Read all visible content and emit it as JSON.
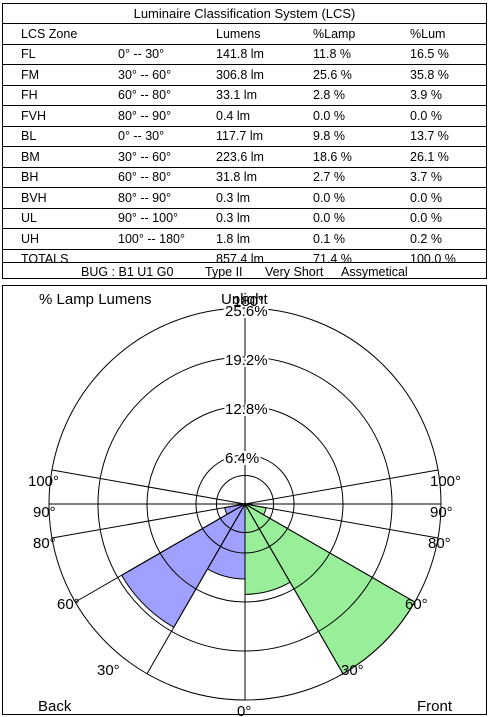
{
  "table": {
    "title": "Luminaire Classification System (LCS)",
    "columns": [
      "LCS Zone",
      "",
      "Lumens",
      "%Lamp",
      "%Lum"
    ],
    "rows": [
      {
        "zone": "FL",
        "range": "0° -- 30°",
        "lumens": "141.8 lm",
        "lamp": "11.8 %",
        "lum": "16.5 %"
      },
      {
        "zone": "FM",
        "range": "30° -- 60°",
        "lumens": "306.8 lm",
        "lamp": "25.6 %",
        "lum": "35.8 %"
      },
      {
        "zone": "FH",
        "range": "60° -- 80°",
        "lumens": "33.1 lm",
        "lamp": "2.8 %",
        "lum": "3.9 %"
      },
      {
        "zone": "FVH",
        "range": "80° -- 90°",
        "lumens": "0.4 lm",
        "lamp": "0.0 %",
        "lum": "0.0 %"
      },
      {
        "zone": "BL",
        "range": "0° -- 30°",
        "lumens": "117.7 lm",
        "lamp": "9.8 %",
        "lum": "13.7 %"
      },
      {
        "zone": "BM",
        "range": "30° -- 60°",
        "lumens": "223.6 lm",
        "lamp": "18.6 %",
        "lum": "26.1 %"
      },
      {
        "zone": "BH",
        "range": "60° -- 80°",
        "lumens": "31.8 lm",
        "lamp": "2.7 %",
        "lum": "3.7 %"
      },
      {
        "zone": "BVH",
        "range": "80° -- 90°",
        "lumens": "0.3 lm",
        "lamp": "0.0 %",
        "lum": "0.0 %"
      },
      {
        "zone": "UL",
        "range": "90° -- 100°",
        "lumens": "0.3 lm",
        "lamp": "0.0 %",
        "lum": "0.0 %"
      },
      {
        "zone": "UH",
        "range": "100° -- 180°",
        "lumens": "1.8 lm",
        "lamp": "0.1 %",
        "lum": "0.2 %"
      },
      {
        "zone": "TOTALS",
        "range": "",
        "lumens": "857.4 lm",
        "lamp": "71.4 %",
        "lum": "100.0 %"
      }
    ],
    "bug_rating": "BUG : B1 U1 G0",
    "type": "Type II",
    "cutoff": "Very Short",
    "symmetry": "Assymetical"
  },
  "chart_data": {
    "type": "polar",
    "title": "% Lamp Lumens",
    "top_label": "Uplight",
    "bottom_left_label": "Back",
    "bottom_right_label": "Front",
    "ring_values": [
      6.4,
      12.8,
      19.2,
      25.6
    ],
    "ring_labels": [
      "6.4%",
      "12.8%",
      "19.2%",
      "25.6%"
    ],
    "ring_max": 25.6,
    "angle_lines": [
      30,
      60,
      80,
      90,
      100
    ],
    "angle_labels": {
      "top": "180°",
      "bottom": "0°",
      "left": [
        "100°",
        "90°",
        "80°",
        "60°",
        "30°"
      ],
      "right": [
        "100°",
        "90°",
        "80°",
        "60°",
        "30°"
      ]
    },
    "back_color": "#a0a0ff",
    "front_color": "#99ee99",
    "back_wedges": [
      {
        "zone": "BL",
        "from": 0,
        "to": 30,
        "value": 9.8
      },
      {
        "zone": "BM",
        "from": 30,
        "to": 60,
        "value": 18.6
      },
      {
        "zone": "BH",
        "from": 60,
        "to": 80,
        "value": 2.7
      },
      {
        "zone": "BVH",
        "from": 80,
        "to": 90,
        "value": 0.0
      }
    ],
    "front_wedges": [
      {
        "zone": "FL",
        "from": 0,
        "to": 30,
        "value": 11.8
      },
      {
        "zone": "FM",
        "from": 30,
        "to": 60,
        "value": 25.6
      },
      {
        "zone": "FH",
        "from": 60,
        "to": 80,
        "value": 2.8
      },
      {
        "zone": "FVH",
        "from": 80,
        "to": 90,
        "value": 0.0
      }
    ]
  }
}
